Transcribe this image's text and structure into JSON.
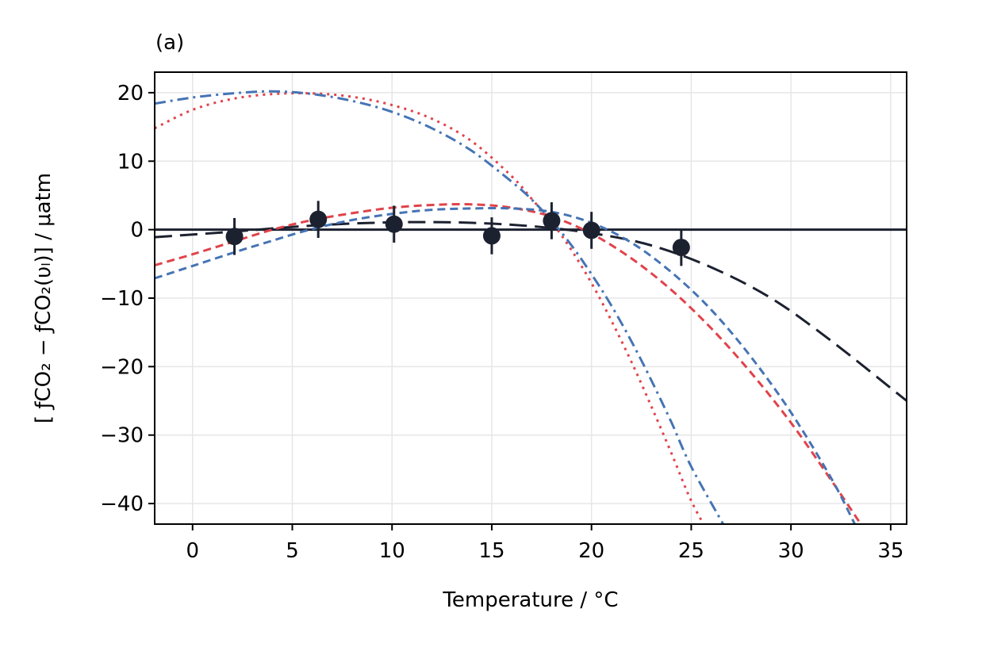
{
  "chart_data": {
    "type": "line",
    "panel_label": "(a)",
    "title": "",
    "xlabel": "Temperature / °C",
    "ylabel": "[ ƒCO₂ − ƒCO₂(υₗ)] / μatm",
    "xlim": [
      -1.9,
      35.8
    ],
    "ylim": [
      -43,
      23
    ],
    "xticks": [
      0,
      5,
      10,
      15,
      20,
      25,
      30,
      35
    ],
    "yticks": [
      20,
      10,
      0,
      -10,
      -20,
      -30,
      -40
    ],
    "xtick_labels": [
      "0",
      "5",
      "10",
      "15",
      "20",
      "25",
      "30",
      "35"
    ],
    "ytick_labels": [
      "20",
      "10",
      "0",
      "−10",
      "−20",
      "−30",
      "−40"
    ],
    "grid": true,
    "legend": "none",
    "reference_line_y": 0,
    "colors": {
      "dark": "#1c2130",
      "red": "#e0434b",
      "blue": "#4574b4",
      "grid": "#e6e6e6"
    },
    "points": [
      {
        "x": 2.1,
        "y": -1.0,
        "err": 2.7
      },
      {
        "x": 6.3,
        "y": 1.5,
        "err": 2.7
      },
      {
        "x": 10.1,
        "y": 0.8,
        "err": 2.7
      },
      {
        "x": 15.0,
        "y": -0.9,
        "err": 2.7
      },
      {
        "x": 18.0,
        "y": 1.3,
        "err": 2.7
      },
      {
        "x": 20.0,
        "y": -0.1,
        "err": 2.7
      },
      {
        "x": 24.5,
        "y": -2.6,
        "err": 2.7
      }
    ],
    "series": [
      {
        "style": "dashed-dark",
        "x": [
          -1.9,
          2,
          5,
          8,
          11,
          14,
          17,
          20,
          23,
          26,
          29,
          32,
          35.8
        ],
        "y": [
          -1.1,
          -0.3,
          0.4,
          0.9,
          1.1,
          1.0,
          0.5,
          -0.5,
          -2.3,
          -5.5,
          -10.0,
          -16.2,
          -25.0
        ]
      },
      {
        "style": "dashed-red",
        "x": [
          -1.9,
          0,
          2,
          4,
          6,
          8,
          10,
          12,
          14,
          16,
          18,
          20,
          22,
          24,
          26,
          28,
          30,
          32,
          33.5
        ],
        "y": [
          -5.2,
          -3.6,
          -1.8,
          0.0,
          1.4,
          2.4,
          3.2,
          3.6,
          3.7,
          3.2,
          1.9,
          -0.6,
          -4.2,
          -8.8,
          -14.4,
          -20.9,
          -28.2,
          -36.5,
          -43
        ]
      },
      {
        "style": "dashed-blue",
        "x": [
          -1.9,
          0,
          2,
          4,
          6,
          8,
          10,
          12,
          14,
          16,
          18,
          20,
          22,
          24,
          26,
          28,
          30,
          32,
          33.2
        ],
        "y": [
          -7.1,
          -5.3,
          -3.4,
          -1.6,
          0.1,
          1.4,
          2.3,
          2.9,
          3.1,
          3.1,
          2.6,
          1.0,
          -1.9,
          -6.2,
          -11.7,
          -18.6,
          -26.7,
          -36.2,
          -43
        ]
      },
      {
        "style": "dotted-red",
        "x": [
          -1.9,
          0,
          2,
          4,
          6,
          8,
          10,
          12,
          14,
          16,
          17,
          18,
          19,
          20,
          21,
          22,
          23,
          24,
          25,
          26
        ],
        "y": [
          14.8,
          17.5,
          19.1,
          19.8,
          19.9,
          19.4,
          18.2,
          16.2,
          12.9,
          7.8,
          4.5,
          1.1,
          -3.0,
          -7.8,
          -13.3,
          -19.3,
          -25.8,
          -32.6,
          -39.6,
          -45
        ]
      },
      {
        "style": "dashdot-blue",
        "x": [
          -1.9,
          0,
          2,
          4,
          6,
          8,
          10,
          12,
          14,
          16,
          17,
          18,
          19,
          20,
          21,
          22,
          23,
          24,
          25,
          26.6
        ],
        "y": [
          18.4,
          19.3,
          19.9,
          20.2,
          19.8,
          18.8,
          17.2,
          14.8,
          11.5,
          7.0,
          4.4,
          1.3,
          -2.3,
          -6.5,
          -11.1,
          -16.3,
          -22.0,
          -28.1,
          -34.6,
          -43
        ]
      }
    ]
  }
}
